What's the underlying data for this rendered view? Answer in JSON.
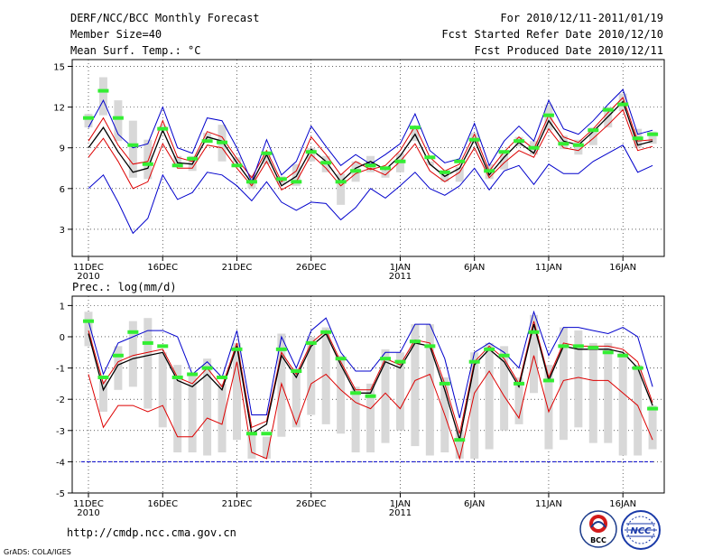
{
  "header": {
    "title": "DERF/NCC/BCC Monthly Forecast",
    "member_size": "Member Size=40",
    "variable_top": "Mean Surf. Temp.: °C",
    "for_range": "For 2010/12/11-2011/01/19",
    "fcst_started": "Fcst Started Refer Date 2010/12/10",
    "fcst_produced": "Fcst Produced Date 2010/12/11"
  },
  "footer": {
    "url": "http://cmdp.ncc.cma.gov.cn",
    "credit": "GrADS: COLA/IGES",
    "logo_bcc": "BCC",
    "logo_ncc": "NCC"
  },
  "colors": {
    "max_min": "#0000cc",
    "mean": "#000000",
    "percentile": "#dd0000",
    "box": "#d8d8d8",
    "obs_marker": "#33ee33",
    "baseline": "#0000cc"
  },
  "chart_data": [
    {
      "type": "line",
      "title": "Mean Surf. Temp.: °C",
      "x_tick_labels": [
        "11DEC",
        "16DEC",
        "21DEC",
        "26DEC",
        "1JAN",
        "6JAN",
        "11JAN",
        "16JAN"
      ],
      "x_tick_days": [
        1,
        6,
        11,
        16,
        22,
        27,
        32,
        37
      ],
      "year_labels": [
        {
          "day": 1,
          "text": "2010"
        },
        {
          "day": 22,
          "text": "2011"
        }
      ],
      "ylim": [
        1,
        15.5
      ],
      "yticks": [
        3,
        6,
        9,
        12,
        15
      ],
      "series": [
        {
          "name": "max",
          "values": [
            10.5,
            12.5,
            10,
            9,
            9.3,
            12,
            9,
            8.6,
            11.2,
            11,
            9,
            6.5,
            9.6,
            7,
            8,
            10.6,
            9.1,
            7.7,
            8.5,
            7.8,
            8.5,
            9.3,
            11.5,
            8.8,
            7.9,
            8.2,
            10.8,
            7.7,
            9.5,
            10.6,
            9.5,
            12.5,
            10.4,
            10,
            11,
            12.2,
            13.3,
            10,
            10.3
          ]
        },
        {
          "name": "p75",
          "values": [
            9.5,
            11.2,
            9.2,
            7.8,
            8,
            11,
            8.3,
            8,
            10.2,
            9.8,
            8.2,
            6.8,
            8.8,
            6.5,
            7.3,
            9.8,
            8.5,
            7,
            8,
            7.4,
            7.7,
            8.8,
            10.6,
            8.3,
            7.3,
            7.8,
            10,
            7.3,
            8.7,
            9.8,
            8.9,
            11.4,
            9.8,
            9.4,
            10.4,
            11.6,
            12.7,
            9.5,
            9.6
          ]
        },
        {
          "name": "mean",
          "values": [
            9,
            10.5,
            8.7,
            7.2,
            7.5,
            10.3,
            7.9,
            7.8,
            9.8,
            9.5,
            7.9,
            6.4,
            8.5,
            6.2,
            6.9,
            8.9,
            8,
            6.5,
            7.5,
            8,
            7.4,
            8.4,
            10,
            7.8,
            6.9,
            7.5,
            9.6,
            7,
            8.3,
            9.4,
            8.6,
            11,
            9.5,
            9.2,
            10.2,
            11.3,
            12.4,
            9.2,
            9.5
          ]
        },
        {
          "name": "p25",
          "values": [
            8.3,
            9.7,
            8,
            6,
            6.5,
            9.3,
            7.5,
            7.5,
            9.2,
            9,
            7.5,
            6.2,
            8,
            5.9,
            6.5,
            8.5,
            7.5,
            6.2,
            7.1,
            7.5,
            7,
            8,
            9.3,
            7.3,
            6.5,
            7.2,
            9,
            6.8,
            7.9,
            8.8,
            8.3,
            10.4,
            9,
            8.8,
            9.7,
            10.7,
            11.8,
            8.8,
            9.1
          ]
        },
        {
          "name": "min",
          "values": [
            6,
            7,
            5,
            2.7,
            3.8,
            7,
            5.2,
            5.7,
            7.2,
            7,
            6.2,
            5.1,
            6.5,
            5,
            4.4,
            5,
            4.9,
            3.7,
            4.6,
            6,
            5.3,
            6.2,
            7.2,
            6,
            5.5,
            6.2,
            7.5,
            5.9,
            7.3,
            7.7,
            6.3,
            7.8,
            7.1,
            7.1,
            8,
            8.6,
            9.2,
            7.2,
            7.7
          ]
        },
        {
          "name": "box_low",
          "values": [
            10.5,
            11.4,
            9.5,
            6.8,
            6.7,
            10.3,
            7.6,
            7.3,
            9.4,
            8,
            7.9,
            6,
            7.8,
            6.3,
            6.2,
            8,
            7.2,
            4.8,
            6.5,
            7.2,
            6.8,
            7.2,
            9.5,
            7.7,
            6.5,
            6.5,
            9.3,
            6.7,
            7.4,
            9.1,
            8.5,
            10.3,
            8.9,
            8.5,
            9.2,
            10.5,
            11.7,
            9,
            9.3
          ]
        },
        {
          "name": "box_high",
          "values": [
            11.5,
            14.2,
            12.5,
            11,
            9.6,
            10.6,
            8.4,
            8.4,
            10.1,
            10.7,
            8.3,
            7,
            8.5,
            6.9,
            7.8,
            9,
            8.4,
            7.1,
            8,
            8.4,
            7.4,
            8.6,
            10.6,
            8,
            7.1,
            7.6,
            10.1,
            7.8,
            8.7,
            9.8,
            9.5,
            12.2,
            9.9,
            9.6,
            10.5,
            12,
            13,
            10.4,
            10.2
          ]
        },
        {
          "name": "obs",
          "values": [
            11.2,
            13.2,
            11.2,
            9.2,
            7.8,
            10.4,
            7.7,
            8.2,
            9.5,
            9.4,
            7.7,
            6.5,
            8.6,
            6.7,
            6.5,
            8.7,
            7.9,
            6.5,
            7.3,
            7.7,
            7.5,
            8,
            10.5,
            8.3,
            7.2,
            8,
            9.6,
            7.3,
            8.7,
            9.5,
            9,
            11.4,
            9.3,
            9.2,
            10.3,
            11.8,
            12.2,
            9.7,
            10
          ]
        }
      ]
    },
    {
      "type": "line",
      "title": "Prec.: log(mm/d)",
      "x_tick_labels": [
        "11DEC",
        "16DEC",
        "21DEC",
        "26DEC",
        "1JAN",
        "6JAN",
        "11JAN",
        "16JAN"
      ],
      "x_tick_days": [
        1,
        6,
        11,
        16,
        22,
        27,
        32,
        37
      ],
      "year_labels": [
        {
          "day": 1,
          "text": "2010"
        },
        {
          "day": 22,
          "text": "2011"
        }
      ],
      "ylim": [
        -5,
        1.3
      ],
      "yticks": [
        -5,
        -4,
        -3,
        -2,
        -1,
        0,
        1
      ],
      "series": [
        {
          "name": "max",
          "values": [
            0.5,
            -1.2,
            -0.2,
            0,
            0.2,
            0.2,
            0,
            -1.2,
            -0.8,
            -1.3,
            0.2,
            -2.5,
            -2.5,
            0,
            -1,
            0.2,
            0.6,
            -0.5,
            -1.1,
            -1.1,
            -0.5,
            -0.5,
            0.4,
            0.4,
            -0.7,
            -2.6,
            -0.5,
            -0.2,
            -0.5,
            -1,
            0.8,
            -0.6,
            0.3,
            0.3,
            0.2,
            0.1,
            0.3,
            0,
            -1.6
          ]
        },
        {
          "name": "p75",
          "values": [
            0.2,
            -1.5,
            -0.8,
            -0.6,
            -0.5,
            -0.4,
            -1.3,
            -1.5,
            -1,
            -1.6,
            -0.2,
            -2.9,
            -2.7,
            -0.5,
            -1.2,
            -0.2,
            0.2,
            -0.8,
            -1.7,
            -1.7,
            -0.7,
            -0.9,
            -0.1,
            -0.2,
            -1.5,
            -3.1,
            -0.8,
            -0.3,
            -0.7,
            -1.5,
            0.5,
            -1.3,
            -0.2,
            -0.3,
            -0.3,
            -0.3,
            -0.4,
            -0.8,
            -2.1
          ]
        },
        {
          "name": "mean",
          "values": [
            0.1,
            -1.7,
            -0.9,
            -0.7,
            -0.6,
            -0.5,
            -1.4,
            -1.6,
            -1.2,
            -1.7,
            -0.3,
            -3.1,
            -2.8,
            -0.6,
            -1.3,
            -0.3,
            0.1,
            -0.9,
            -1.8,
            -1.8,
            -0.8,
            -1,
            -0.2,
            -0.3,
            -1.7,
            -3.3,
            -0.9,
            -0.4,
            -0.8,
            -1.6,
            0.4,
            -1.4,
            -0.3,
            -0.4,
            -0.4,
            -0.4,
            -0.5,
            -1,
            -2.2
          ]
        },
        {
          "name": "p25",
          "values": [
            -1.2,
            -2.9,
            -2.2,
            -2.2,
            -2.4,
            -2.2,
            -3.2,
            -3.2,
            -2.6,
            -2.8,
            -0.8,
            -3.7,
            -3.9,
            -1.5,
            -2.8,
            -1.5,
            -1.2,
            -1.7,
            -2.1,
            -2.3,
            -1.8,
            -2.3,
            -1.4,
            -1.2,
            -2.5,
            -3.9,
            -1.8,
            -1.1,
            -1.9,
            -2.6,
            -0.6,
            -2.4,
            -1.4,
            -1.3,
            -1.4,
            -1.4,
            -1.8,
            -2.2,
            -3.3
          ]
        },
        {
          "name": "min",
          "values": [
            -4,
            -4,
            -4,
            -4,
            -4,
            -4,
            -4,
            -4,
            -4,
            -4,
            -4,
            -4,
            -4,
            -4,
            -4,
            -4,
            -4,
            -4,
            -4,
            -4,
            -4,
            -4,
            -4,
            -4,
            -4,
            -4,
            -4,
            -4,
            -4,
            -4,
            -4,
            -4,
            -4,
            -4,
            -4,
            -4,
            -4,
            -4,
            -4
          ]
        },
        {
          "name": "box_low",
          "values": [
            -0.3,
            -2.4,
            -1.7,
            -1.6,
            -2.3,
            -2.9,
            -3.7,
            -3.7,
            -3.8,
            -3.7,
            -3.3,
            -3.9,
            -3.9,
            -3.2,
            -2.9,
            -2.5,
            -2.8,
            -3.1,
            -3.7,
            -3.7,
            -3.4,
            -3,
            -3.5,
            -3.8,
            -3.7,
            -3.9,
            -3.9,
            -3.6,
            -3,
            -2.8,
            -1.8,
            -3.6,
            -3.3,
            -2.9,
            -3.4,
            -3.4,
            -3.8,
            -3.8,
            -3.6
          ]
        },
        {
          "name": "box_high",
          "values": [
            0.8,
            -1.4,
            -0.3,
            0.5,
            0.6,
            -0.5,
            -0.9,
            -1.2,
            -0.7,
            -1.5,
            -0.2,
            -3.1,
            -3.2,
            0.1,
            -1,
            0,
            0.3,
            -0.6,
            -1.6,
            -1.5,
            -0.4,
            -0.5,
            0.4,
            0.4,
            -1.3,
            -3,
            -0.5,
            -0.2,
            -0.3,
            -1.3,
            0.7,
            -0.9,
            0.3,
            0.2,
            -0.2,
            -0.2,
            -0.5,
            -0.9,
            -2.2
          ]
        },
        {
          "name": "obs",
          "values": [
            0.5,
            -1.3,
            -0.6,
            0.15,
            -0.2,
            -0.3,
            -1.3,
            -1.2,
            -1,
            -1.3,
            -0.4,
            -3.1,
            -3.1,
            -0.4,
            -1.1,
            -0.2,
            0.15,
            -0.7,
            -1.8,
            -1.9,
            -0.7,
            -0.8,
            -0.15,
            -0.3,
            -1.5,
            -3.3,
            -0.8,
            -0.4,
            -0.6,
            -1.5,
            0.15,
            -1.4,
            -0.3,
            -0.3,
            -0.35,
            -0.5,
            -0.6,
            -1,
            -2.3
          ]
        }
      ]
    }
  ]
}
